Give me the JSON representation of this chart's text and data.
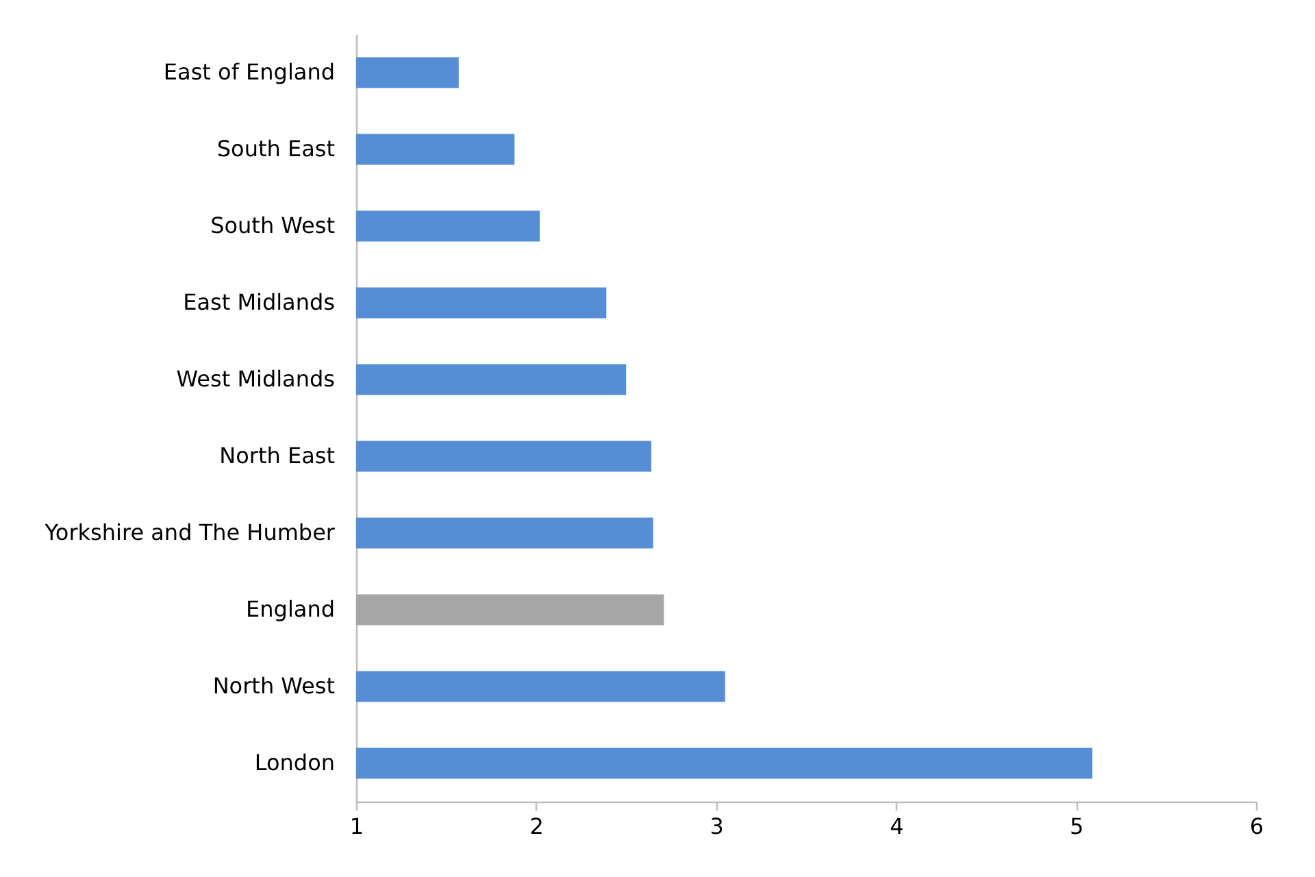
{
  "chart_data": {
    "type": "bar",
    "orientation": "horizontal",
    "categories": [
      "East of England",
      "South East",
      "South West",
      "East Midlands",
      "West Midlands",
      "North East",
      "Yorkshire and The Humber",
      "England",
      "North West",
      "London"
    ],
    "values": [
      1.57,
      1.88,
      2.02,
      2.39,
      2.5,
      2.64,
      2.65,
      2.71,
      3.05,
      5.09
    ],
    "colors": [
      "#558ed5",
      "#558ed5",
      "#558ed5",
      "#558ed5",
      "#558ed5",
      "#558ed5",
      "#558ed5",
      "#a6a6a6",
      "#558ed5",
      "#558ed5"
    ],
    "xlim": [
      1,
      6
    ],
    "xticks": [
      1,
      2,
      3,
      4,
      5,
      6
    ],
    "grid": false
  }
}
